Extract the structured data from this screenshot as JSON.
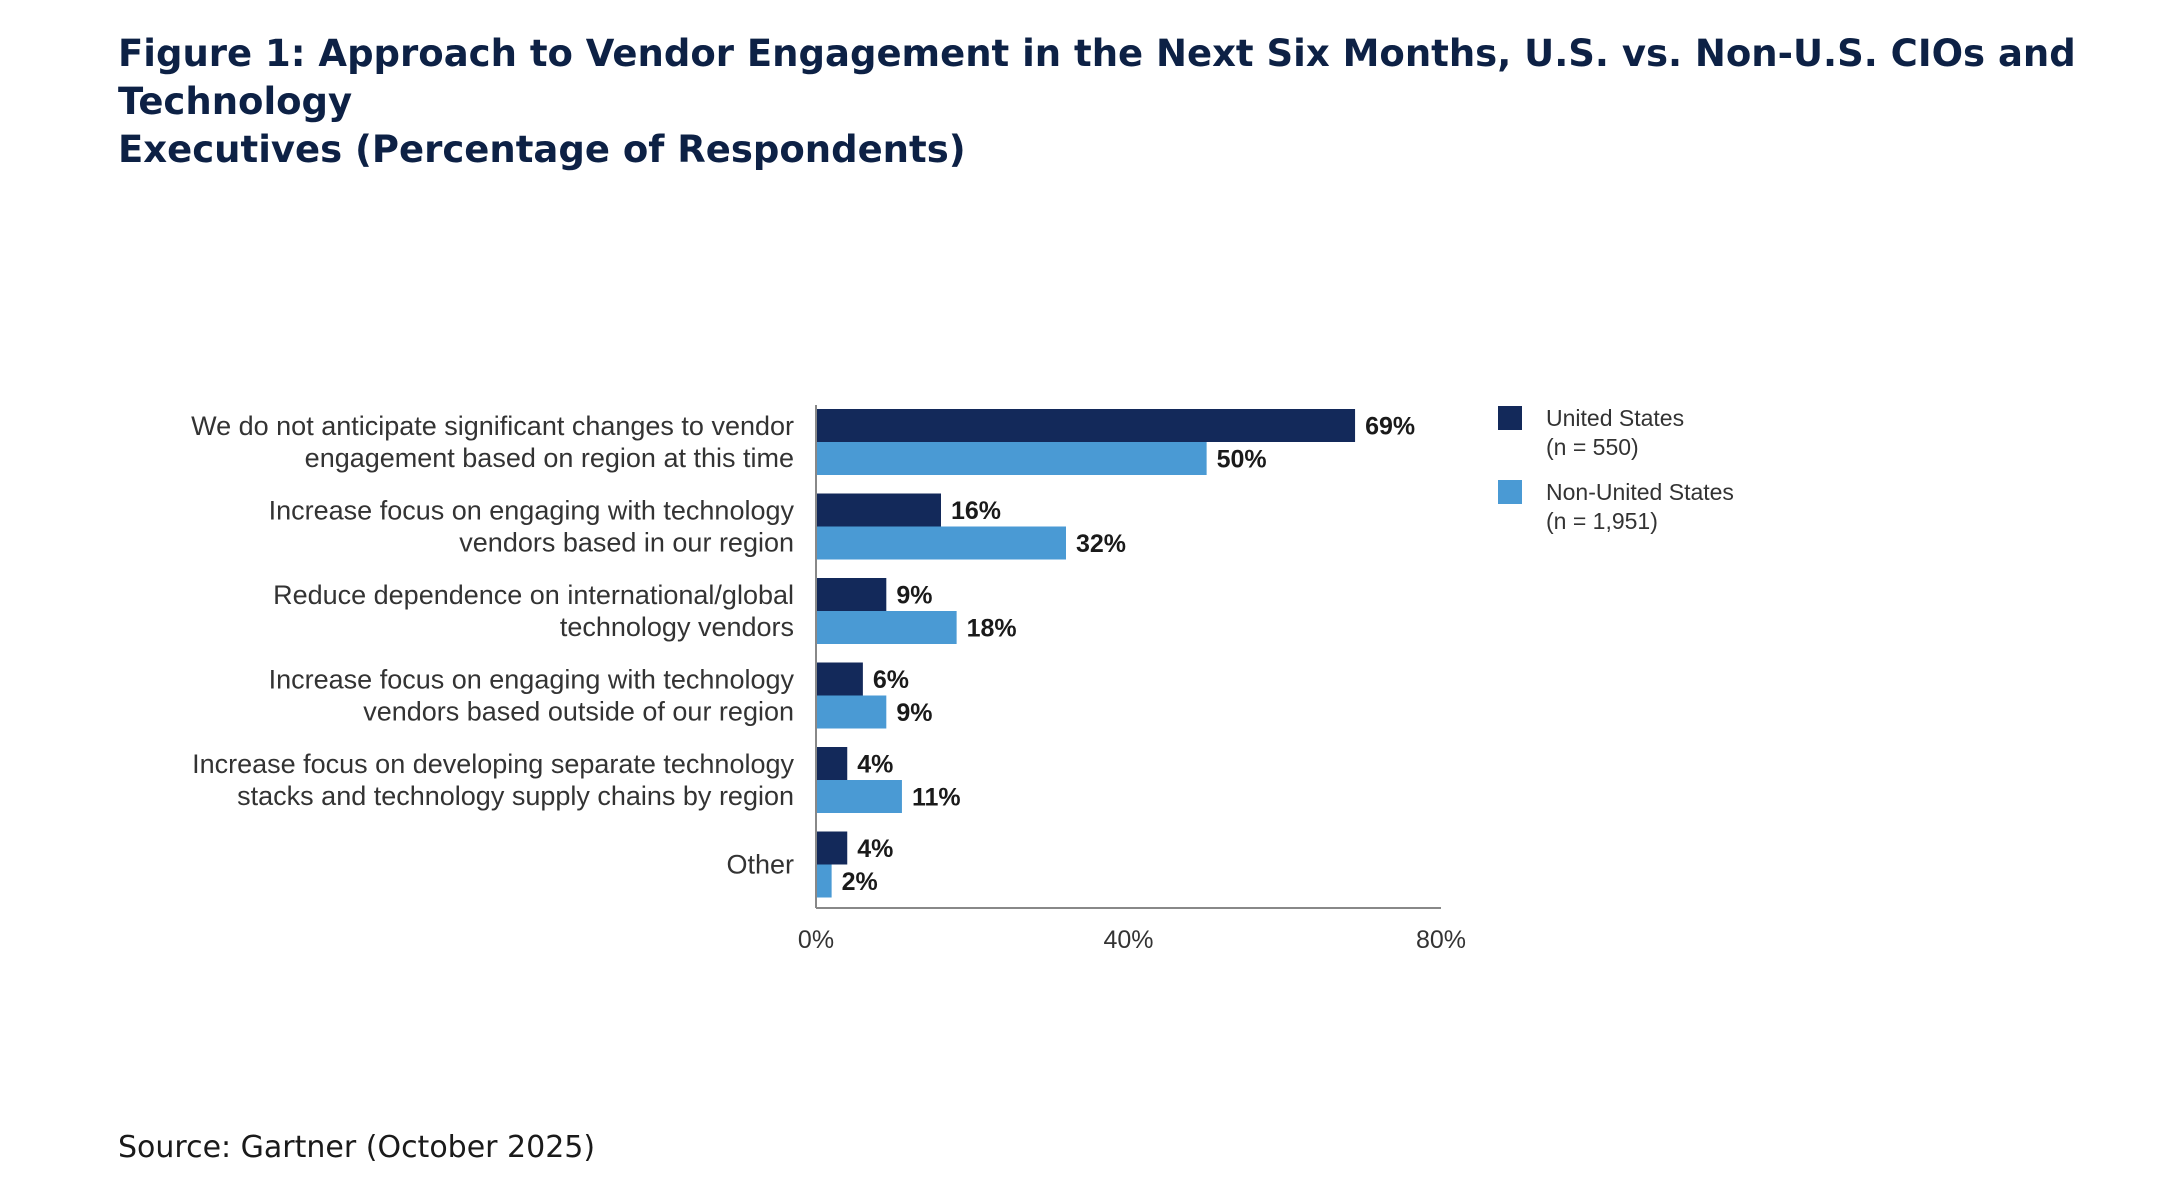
{
  "title_lines": [
    "Figure 1: Approach to Vendor Engagement in the Next Six Months, U.S. vs. Non-U.S. CIOs and Technology",
    "Executives (Percentage of Respondents)"
  ],
  "source": "Source: Gartner (October 2025)",
  "chart_data": {
    "type": "bar",
    "orientation": "horizontal",
    "categories": [
      [
        "We do not anticipate significant changes to vendor",
        "engagement based on region at this time"
      ],
      [
        "Increase focus on engaging with technology",
        "vendors based in our region"
      ],
      [
        "Reduce dependence on international/global",
        "technology vendors"
      ],
      [
        "Increase focus on engaging with technology",
        "vendors based outside of our region"
      ],
      [
        "Increase focus on developing separate technology",
        "stacks and technology supply chains by region"
      ],
      [
        "Other"
      ]
    ],
    "series": [
      {
        "name": "United States",
        "legend_lines": [
          "United States",
          "(n = 550)"
        ],
        "color": "#13295a",
        "values": [
          69,
          16,
          9,
          6,
          4,
          4
        ],
        "labels": [
          "69%",
          "16%",
          "9%",
          "6%",
          "4%",
          "4%"
        ]
      },
      {
        "name": "Non-United States",
        "legend_lines": [
          "Non-United States",
          "(n = 1,951)"
        ],
        "color": "#4a9ad4",
        "values": [
          50,
          32,
          18,
          9,
          11,
          2
        ],
        "labels": [
          "50%",
          "32%",
          "18%",
          "9%",
          "11%",
          "2%"
        ]
      }
    ],
    "xlim": [
      0,
      80
    ],
    "xticks": [
      0,
      40,
      80
    ],
    "xtick_labels": [
      "0%",
      "40%",
      "80%"
    ],
    "grid": false,
    "legend_position": "right"
  }
}
